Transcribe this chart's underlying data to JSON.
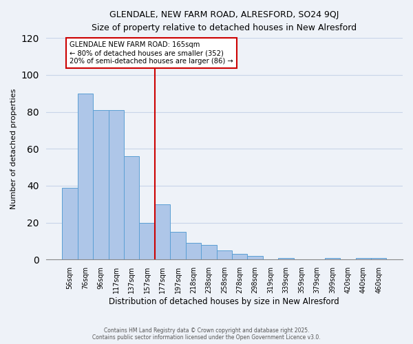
{
  "title_line1": "GLENDALE, NEW FARM ROAD, ALRESFORD, SO24 9QJ",
  "title_line2": "Size of property relative to detached houses in New Alresford",
  "xlabel": "Distribution of detached houses by size in New Alresford",
  "ylabel": "Number of detached properties",
  "bar_labels": [
    "56sqm",
    "76sqm",
    "96sqm",
    "117sqm",
    "137sqm",
    "157sqm",
    "177sqm",
    "197sqm",
    "218sqm",
    "238sqm",
    "258sqm",
    "278sqm",
    "298sqm",
    "319sqm",
    "339sqm",
    "359sqm",
    "379sqm",
    "399sqm",
    "420sqm",
    "440sqm",
    "460sqm"
  ],
  "bar_values": [
    39,
    90,
    81,
    81,
    56,
    20,
    30,
    15,
    9,
    8,
    5,
    3,
    2,
    0,
    1,
    0,
    0,
    1,
    0,
    1,
    1
  ],
  "bar_color": "#aec6e8",
  "bar_edge_color": "#5a9fd4",
  "vline_color": "#cc0000",
  "annotation_title": "GLENDALE NEW FARM ROAD: 165sqm",
  "annotation_line1": "← 80% of detached houses are smaller (352)",
  "annotation_line2": "20% of semi-detached houses are larger (86) →",
  "annotation_box_color": "#ffffff",
  "annotation_box_edge": "#cc0000",
  "ylim": [
    0,
    120
  ],
  "yticks": [
    0,
    20,
    40,
    60,
    80,
    100,
    120
  ],
  "footnote1": "Contains HM Land Registry data © Crown copyright and database right 2025.",
  "footnote2": "Contains public sector information licensed under the Open Government Licence v3.0.",
  "bg_color": "#eef2f8",
  "grid_color": "#c8d4e8"
}
